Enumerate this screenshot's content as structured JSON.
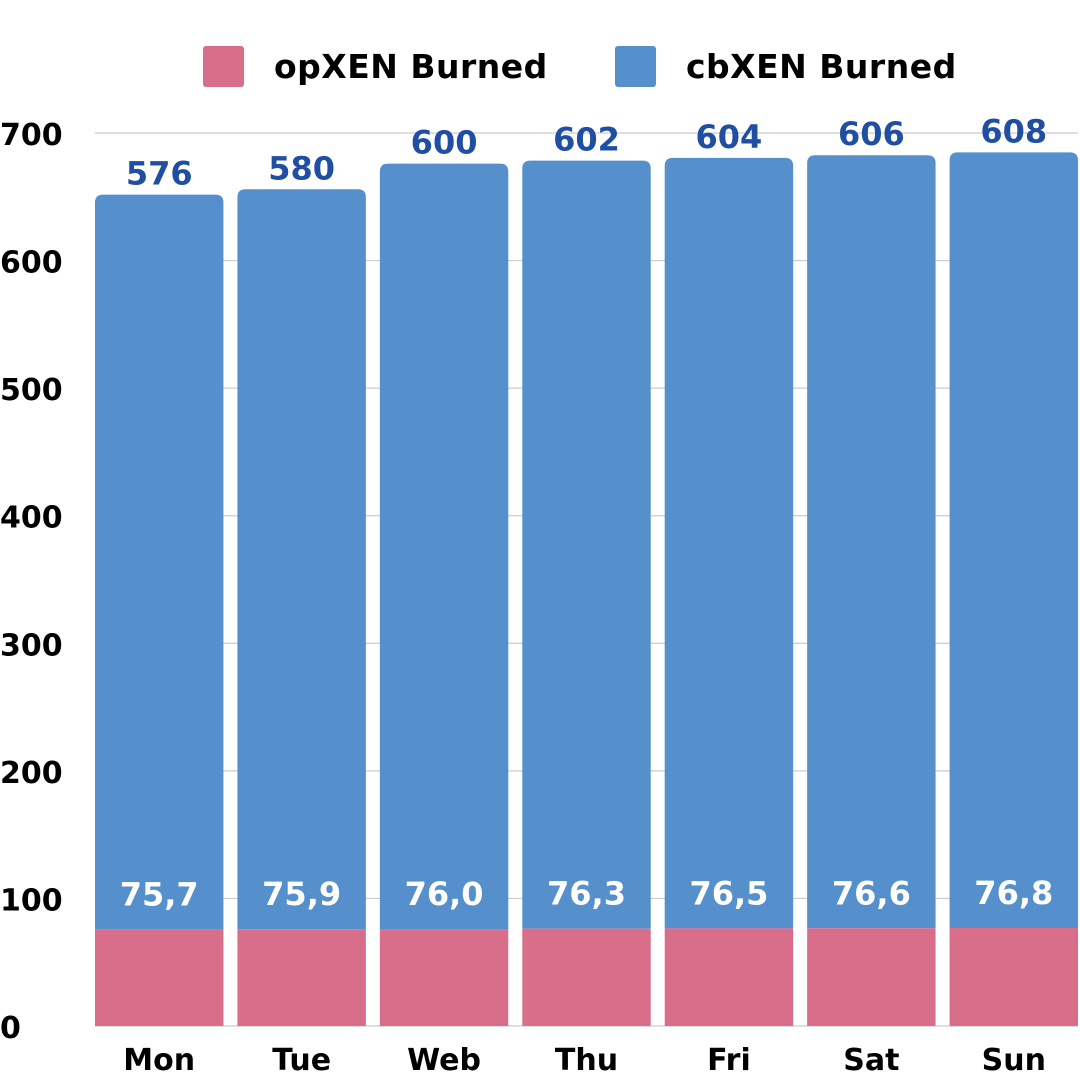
{
  "chart_data": {
    "type": "bar",
    "stacked": true,
    "title": "",
    "xlabel": "",
    "ylabel": "",
    "ylim": [
      0,
      700
    ],
    "yticks": [
      0,
      100,
      200,
      300,
      400,
      500,
      600,
      700
    ],
    "grid": true,
    "legend_position": "top-center",
    "categories": [
      "Mon",
      "Tue",
      "Web",
      "Thu",
      "Fri",
      "Sat",
      "Sun"
    ],
    "series": [
      {
        "name": "opXEN Burned",
        "color": "#d86e8a",
        "values": [
          75.7,
          75.9,
          76.0,
          76.3,
          76.5,
          76.6,
          76.8
        ],
        "labels": [
          "75,7",
          "75,9",
          "76,0",
          "76,3",
          "76,5",
          "76,6",
          "76,8"
        ],
        "label_color": "#ffffff"
      },
      {
        "name": "cbXEN Burned",
        "color": "#5590cc",
        "values": [
          576,
          580,
          600,
          602,
          604,
          606,
          608
        ],
        "labels": [
          "576",
          "580",
          "600",
          "602",
          "604",
          "606",
          "608"
        ],
        "label_color": "#1f4ea3"
      }
    ]
  }
}
